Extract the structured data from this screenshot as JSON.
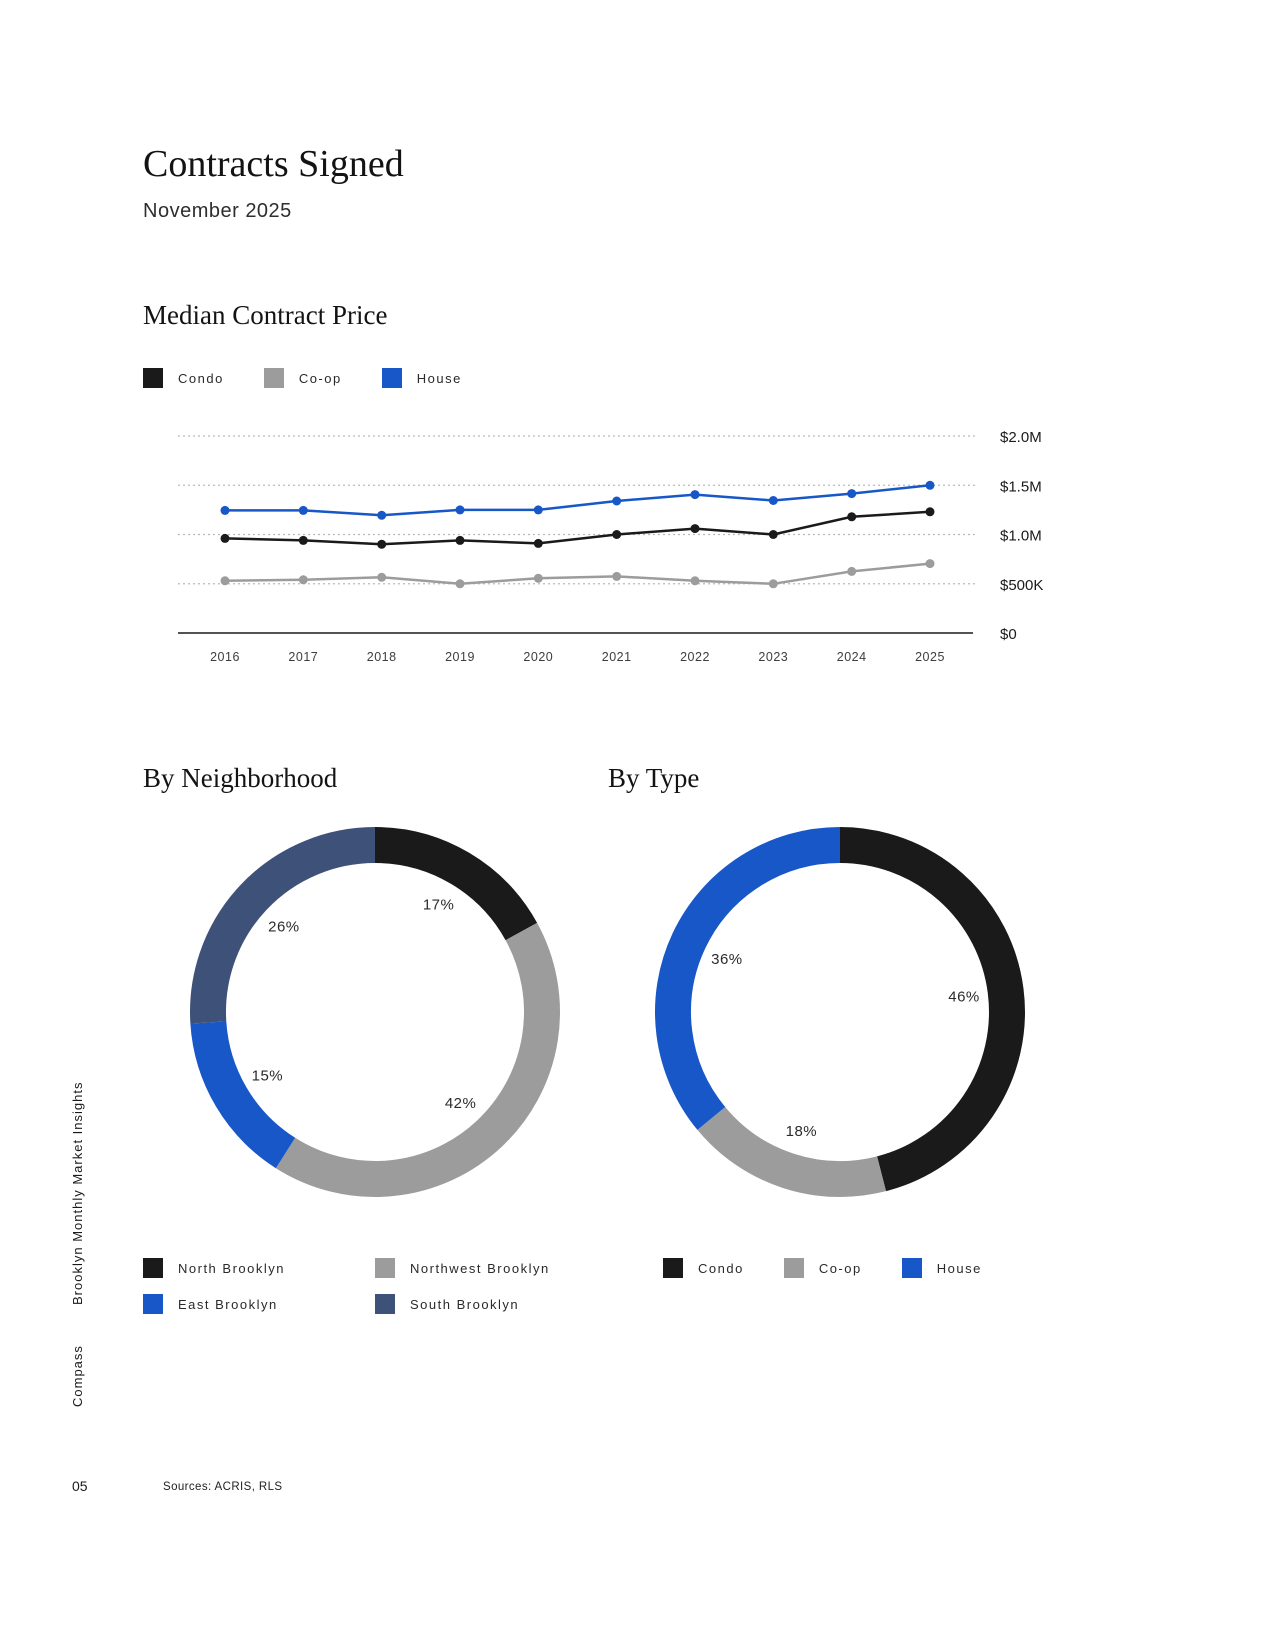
{
  "page": {
    "title": "Contracts Signed",
    "subtitle": "November 2025",
    "sidebar_title": "Brooklyn Monthly Market Insights",
    "brand": "Compass",
    "page_number": "05",
    "sources": "Sources: ACRIS, RLS"
  },
  "chart_data": [
    {
      "type": "line",
      "title": "Median Contract Price",
      "x": [
        "2016",
        "2017",
        "2018",
        "2019",
        "2020",
        "2021",
        "2022",
        "2023",
        "2024",
        "2025"
      ],
      "series": [
        {
          "name": "Condo",
          "color": "#1a1a1a",
          "values": [
            960000,
            940000,
            900000,
            940000,
            910000,
            1000000,
            1060000,
            1000000,
            1180000,
            1230000
          ]
        },
        {
          "name": "Co-op",
          "color": "#9c9c9c",
          "values": [
            530000,
            540000,
            565000,
            500000,
            555000,
            575000,
            530000,
            500000,
            625000,
            705000
          ]
        },
        {
          "name": "House",
          "color": "#1757c8",
          "values": [
            1245000,
            1245000,
            1195000,
            1250000,
            1250000,
            1340000,
            1405000,
            1345000,
            1415000,
            1500000
          ]
        }
      ],
      "ylim": [
        0,
        2000000
      ],
      "yticks": [
        {
          "value": 0,
          "label": "$0"
        },
        {
          "value": 500000,
          "label": "$500K"
        },
        {
          "value": 1000000,
          "label": "$1.0M"
        },
        {
          "value": 1500000,
          "label": "$1.5M"
        },
        {
          "value": 2000000,
          "label": "$2.0M"
        }
      ],
      "grid": true,
      "legend_position": "top"
    },
    {
      "type": "pie",
      "title": "By Neighborhood",
      "donut": true,
      "labels": [
        "North Brooklyn",
        "Northwest Brooklyn",
        "East Brooklyn",
        "South Brooklyn"
      ],
      "values": [
        17,
        42,
        15,
        26
      ],
      "colors": [
        "#1a1a1a",
        "#9c9c9c",
        "#1757c8",
        "#3e5178"
      ]
    },
    {
      "type": "pie",
      "title": "By Type",
      "donut": true,
      "labels": [
        "Condo",
        "Co-op",
        "House"
      ],
      "values": [
        46,
        18,
        36
      ],
      "colors": [
        "#1a1a1a",
        "#9c9c9c",
        "#1757c8"
      ]
    }
  ]
}
